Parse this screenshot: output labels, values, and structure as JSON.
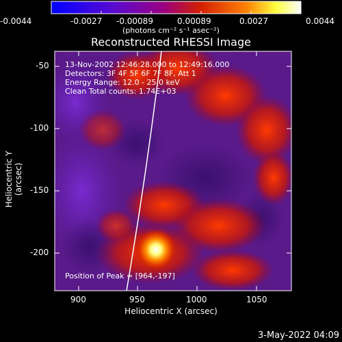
{
  "colorbar": {
    "tick_labels": [
      "-0.0044",
      "-0.0027",
      "-0.00089",
      "0.00089",
      "0.0027",
      "0.0044"
    ],
    "units_label": "(photons cm⁻² s⁻¹ asec⁻²)",
    "colors": [
      "#0000ff",
      "#6a00b0",
      "#a0006a",
      "#d42000",
      "#ff7000",
      "#ffff50",
      "#ffffff"
    ]
  },
  "title": "Reconstructed RHESSI Image",
  "info": {
    "time_range": "13-Nov-2002 12:46:28.000 to 12:49:16.000",
    "detectors": "Detectors: 3F 4F 5F 6F 7F 8F, Att 1",
    "energy_range": "Energy Range: 12.0 - 25.0 keV",
    "clean": "Clean     Total counts: 1.74E+03"
  },
  "peak": "Position of Peak = [964,-197]",
  "axes": {
    "xlabel": "Heliocentric X (arcsec)",
    "ylabel": "Heliocentric Y (arcsec)",
    "xticks": [
      "900",
      "950",
      "1000",
      "1050"
    ],
    "yticks": [
      "-50",
      "-100",
      "-150",
      "-200"
    ]
  },
  "timestamp": "3-May-2022 04:09"
}
